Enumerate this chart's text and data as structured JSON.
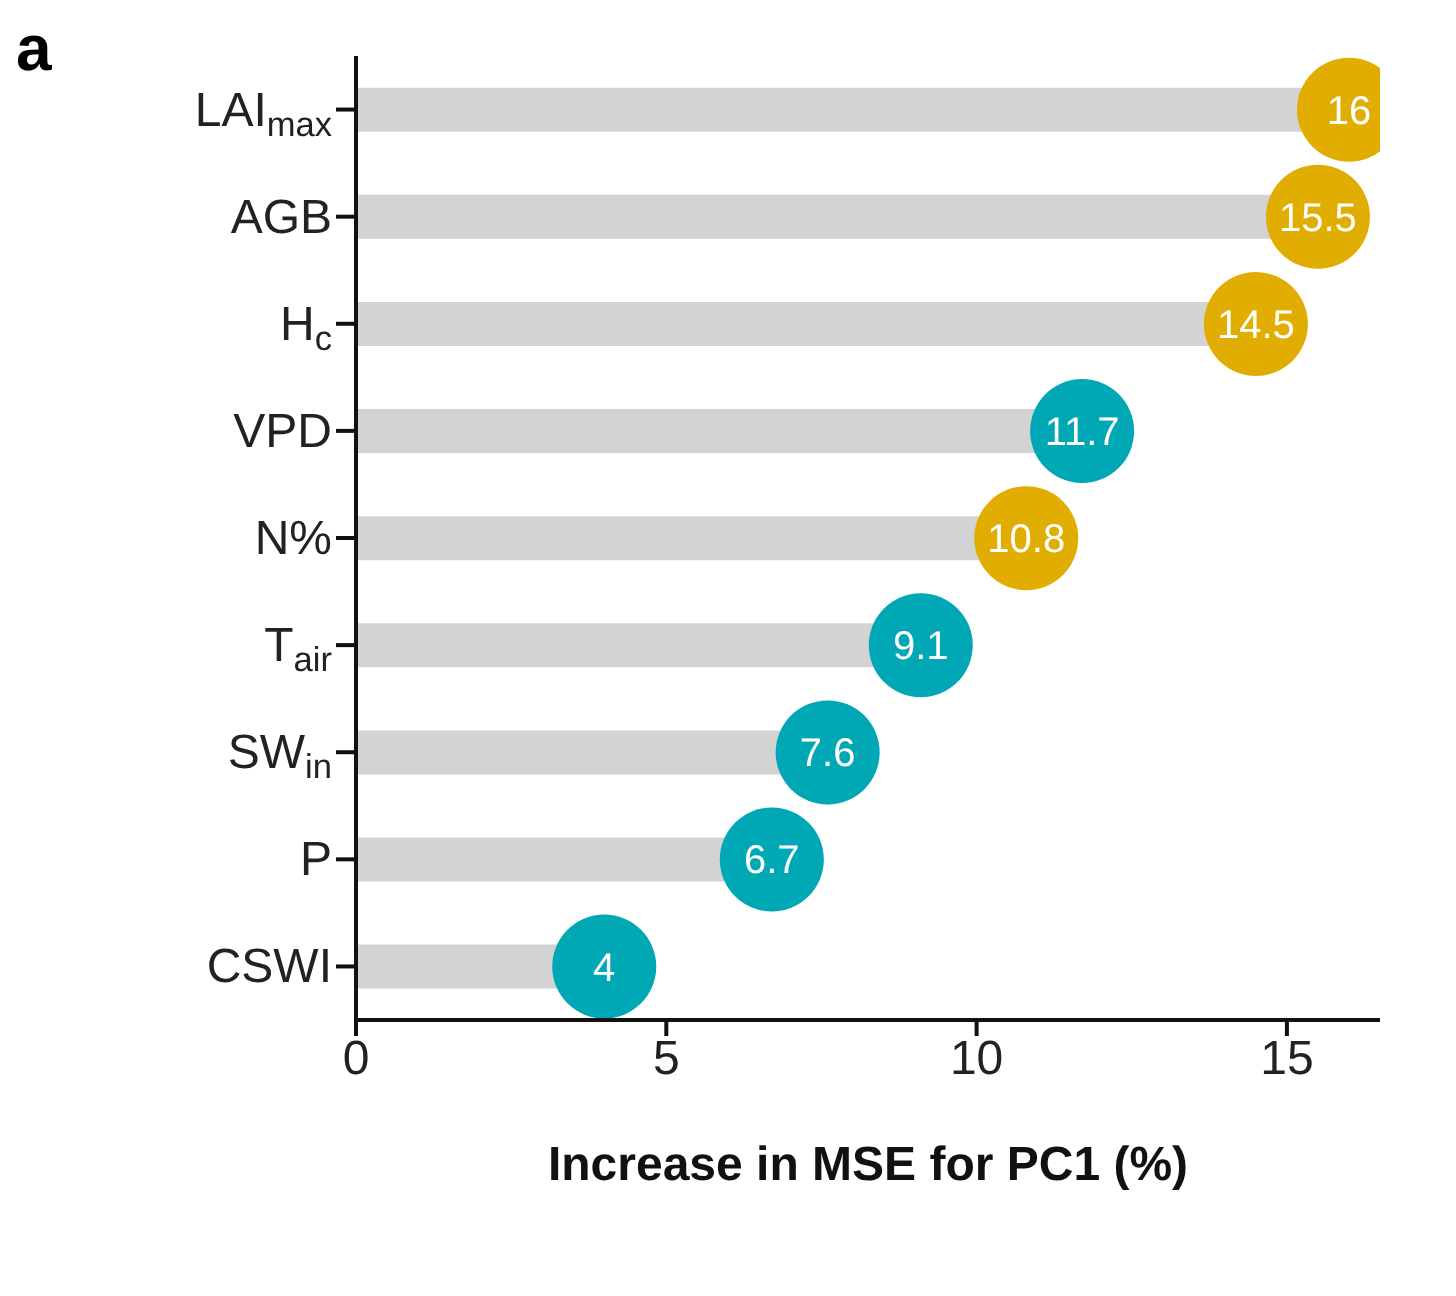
{
  "chart_data": {
    "type": "lollipop",
    "orientation": "horizontal",
    "title": "a",
    "xlabel": "Increase in MSE for PC1 (%)",
    "categories": [
      "LAI$_{max}$",
      "AGB",
      "H$_{c}$",
      "VPD",
      "N%",
      "T$_{air}$",
      "SW$_{in}$",
      "P",
      "CSWI"
    ],
    "values": [
      16,
      15.5,
      14.5,
      11.7,
      10.8,
      9.1,
      7.6,
      6.7,
      4
    ],
    "color": "#d3d3d3",
    "colors": [
      "#e0ad00",
      "#e0ad00",
      "#e0ad00",
      "#00a8b5",
      "#e0ad00",
      "#00a8b5",
      "#00a8b5",
      "#00a8b5",
      "#00a8b5"
    ],
    "xlim": [
      0,
      16.5
    ],
    "xticks": [
      0,
      5,
      10,
      15
    ],
    "data_labels": true,
    "marker": "circle",
    "grid": false,
    "legend": false
  }
}
